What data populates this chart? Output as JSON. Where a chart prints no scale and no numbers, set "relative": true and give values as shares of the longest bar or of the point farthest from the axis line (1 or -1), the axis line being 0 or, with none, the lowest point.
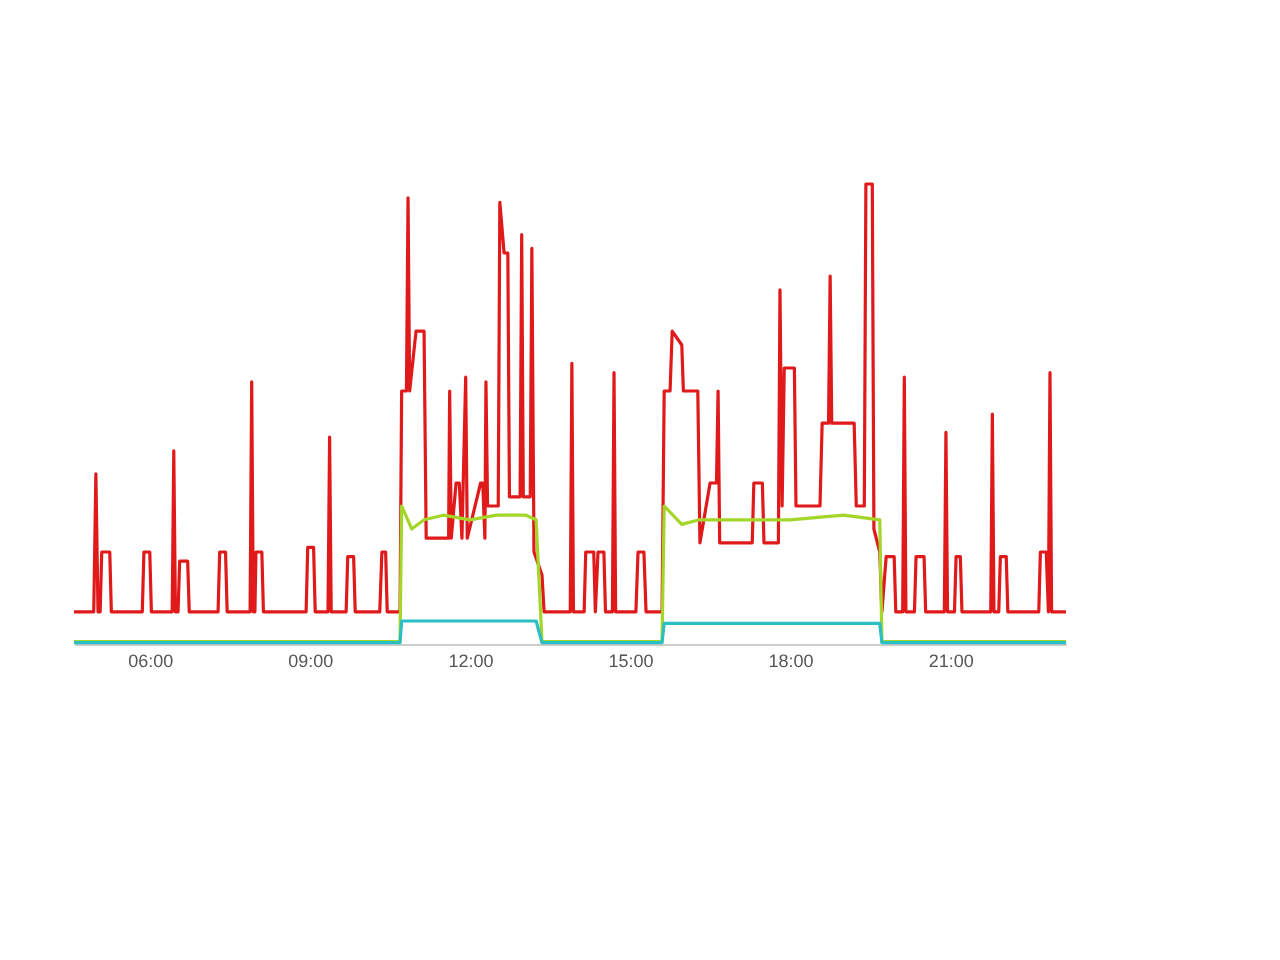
{
  "chart_data": {
    "type": "line",
    "relative": true,
    "marker": "none",
    "line_style": "solid",
    "xlim": [
      4.58,
      23.17
    ],
    "xticks": [
      {
        "value": 6,
        "label": "06:00"
      },
      {
        "value": 9,
        "label": "09:00"
      },
      {
        "value": 12,
        "label": "12:00"
      },
      {
        "value": 15,
        "label": "15:00"
      },
      {
        "value": 18,
        "label": "18:00"
      },
      {
        "value": 21,
        "label": "21:00"
      }
    ],
    "series": [
      {
        "color": "#e0191b",
        "x": [
          4.58,
          4.95,
          4.99,
          5.03,
          5.07,
          5.1,
          5.25,
          5.28,
          5.86,
          5.89,
          6.0,
          6.03,
          6.42,
          6.45,
          6.48,
          6.53,
          6.56,
          6.71,
          6.74,
          7.28,
          7.31,
          7.42,
          7.45,
          7.88,
          7.91,
          7.94,
          7.97,
          7.99,
          8.1,
          8.13,
          8.93,
          8.96,
          9.07,
          9.1,
          9.34,
          9.37,
          9.4,
          9.68,
          9.71,
          9.82,
          9.85,
          10.31,
          10.35,
          10.42,
          10.45,
          10.69,
          10.72,
          10.81,
          10.84,
          10.87,
          10.99,
          11.14,
          11.18,
          11.6,
          11.62,
          11.65,
          11.74,
          11.8,
          11.85,
          11.92,
          11.95,
          12.2,
          12.24,
          12.28,
          12.3,
          12.33,
          12.53,
          12.56,
          12.64,
          12.71,
          12.74,
          12.94,
          12.97,
          13.0,
          13.13,
          13.16,
          13.2,
          13.35,
          13.39,
          13.88,
          13.91,
          13.94,
          14.14,
          14.17,
          14.32,
          14.35,
          14.4,
          14.51,
          14.54,
          14.67,
          14.7,
          14.73,
          15.11,
          15.15,
          15.26,
          15.3,
          15.6,
          15.64,
          15.75,
          15.79,
          15.97,
          16.0,
          16.27,
          16.31,
          16.5,
          16.62,
          16.65,
          16.68,
          17.29,
          17.32,
          17.48,
          17.51,
          17.78,
          17.81,
          17.85,
          17.89,
          18.08,
          18.11,
          18.56,
          18.6,
          18.72,
          18.75,
          18.78,
          19.2,
          19.24,
          19.39,
          19.42,
          19.54,
          19.57,
          19.68,
          19.72,
          19.8,
          19.95,
          19.98,
          20.11,
          20.14,
          20.17,
          20.33,
          20.36,
          20.51,
          20.54,
          20.89,
          20.92,
          20.95,
          21.08,
          21.11,
          21.19,
          21.22,
          21.76,
          21.79,
          21.82,
          21.91,
          21.94,
          22.05,
          22.08,
          22.66,
          22.69,
          22.8,
          22.84,
          22.87,
          22.9,
          23.17
        ],
        "values": [
          0.07,
          0.07,
          0.37,
          0.07,
          0.07,
          0.2,
          0.2,
          0.07,
          0.07,
          0.2,
          0.2,
          0.07,
          0.07,
          0.42,
          0.07,
          0.07,
          0.18,
          0.18,
          0.07,
          0.07,
          0.2,
          0.2,
          0.07,
          0.07,
          0.57,
          0.07,
          0.07,
          0.2,
          0.2,
          0.07,
          0.07,
          0.21,
          0.21,
          0.07,
          0.07,
          0.45,
          0.07,
          0.07,
          0.19,
          0.19,
          0.07,
          0.07,
          0.2,
          0.2,
          0.07,
          0.07,
          0.55,
          0.55,
          0.97,
          0.55,
          0.68,
          0.68,
          0.23,
          0.23,
          0.55,
          0.23,
          0.35,
          0.35,
          0.23,
          0.58,
          0.23,
          0.35,
          0.35,
          0.23,
          0.57,
          0.3,
          0.3,
          0.96,
          0.85,
          0.85,
          0.32,
          0.32,
          0.89,
          0.32,
          0.32,
          0.86,
          0.2,
          0.15,
          0.07,
          0.07,
          0.61,
          0.07,
          0.07,
          0.2,
          0.2,
          0.07,
          0.2,
          0.2,
          0.07,
          0.07,
          0.59,
          0.07,
          0.07,
          0.2,
          0.2,
          0.07,
          0.07,
          0.55,
          0.55,
          0.68,
          0.65,
          0.55,
          0.55,
          0.22,
          0.35,
          0.35,
          0.55,
          0.22,
          0.22,
          0.35,
          0.35,
          0.22,
          0.22,
          0.77,
          0.3,
          0.6,
          0.6,
          0.3,
          0.3,
          0.48,
          0.48,
          0.8,
          0.48,
          0.48,
          0.3,
          0.3,
          1,
          1,
          0.25,
          0.2,
          0.07,
          0.19,
          0.19,
          0.07,
          0.07,
          0.58,
          0.07,
          0.07,
          0.19,
          0.19,
          0.07,
          0.07,
          0.46,
          0.07,
          0.07,
          0.19,
          0.19,
          0.07,
          0.07,
          0.5,
          0.07,
          0.07,
          0.19,
          0.19,
          0.07,
          0.07,
          0.2,
          0.2,
          0.07,
          0.59,
          0.07,
          0.07
        ]
      },
      {
        "color": "#a4d62a",
        "x": [
          4.58,
          10.69,
          10.72,
          10.91,
          11.14,
          11.5,
          12.0,
          12.5,
          13.05,
          13.24,
          13.35,
          15.6,
          15.64,
          15.97,
          16.3,
          17.0,
          18.0,
          19.0,
          19.68,
          19.72,
          23.17
        ],
        "values": [
          0.005,
          0.005,
          0.3,
          0.25,
          0.27,
          0.28,
          0.27,
          0.28,
          0.28,
          0.27,
          0.005,
          0.005,
          0.3,
          0.26,
          0.27,
          0.27,
          0.27,
          0.28,
          0.27,
          0.005,
          0.005
        ]
      },
      {
        "color": "#2bbfc4",
        "x": [
          4.58,
          10.69,
          10.72,
          13.24,
          13.35,
          15.6,
          15.64,
          19.68,
          19.72,
          23.17
        ],
        "values": [
          0.003,
          0.003,
          0.05,
          0.05,
          0.003,
          0.003,
          0.045,
          0.045,
          0.003,
          0.003
        ]
      }
    ]
  }
}
